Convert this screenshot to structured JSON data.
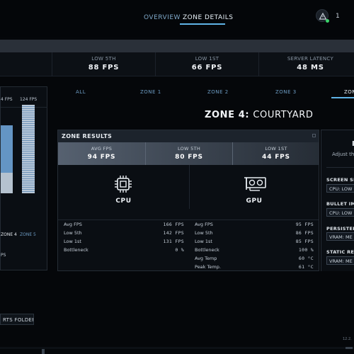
{
  "nav": {
    "tabs": [
      {
        "label": "OVERVIEW"
      },
      {
        "label": "ZONE DETAILS"
      }
    ],
    "notification_count": "1"
  },
  "summary": [
    {
      "label": "LOW 5TH",
      "value": "88 FPS"
    },
    {
      "label": "LOW 1ST",
      "value": "66 FPS"
    },
    {
      "label": "SERVER LATENCY",
      "value": "48 MS"
    }
  ],
  "left_panel": {
    "headers": [
      "4 FPS",
      "124 FPS"
    ],
    "zones": [
      {
        "label": "ZONE 4",
        "active": true
      },
      {
        "label": "ZONE 5",
        "active": false
      }
    ],
    "fps_label": "PS"
  },
  "zone_tabs": [
    "ALL",
    "ZONE 1",
    "ZONE 2",
    "ZONE 3",
    "ZON"
  ],
  "zone_title": {
    "prefix": "ZONE 4:",
    "name": "COURTYARD"
  },
  "results": {
    "title": "ZONE RESULTS",
    "stats": [
      {
        "label": "AVG FPS",
        "value": "94 FPS"
      },
      {
        "label": "LOW 5TH",
        "value": "80 FPS"
      },
      {
        "label": "LOW 1ST",
        "value": "44 FPS"
      }
    ],
    "cpu": {
      "name": "CPU",
      "rows": [
        {
          "k": "Avg FPS",
          "v": "166 FPS"
        },
        {
          "k": "Low 5th",
          "v": "142 FPS"
        },
        {
          "k": "Low 1st",
          "v": "131 FPS"
        },
        {
          "k": "Bottleneck",
          "v": "0 %"
        }
      ]
    },
    "gpu": {
      "name": "GPU",
      "rows": [
        {
          "k": "Avg FPS",
          "v": "95 FPS"
        },
        {
          "k": "Low 5th",
          "v": "86 FPS"
        },
        {
          "k": "Low 1st",
          "v": "85 FPS"
        },
        {
          "k": "Bottleneck",
          "v": "100 %"
        },
        {
          "k": "Avg Temp",
          "v": "60 °C"
        },
        {
          "k": "Peak Temp.",
          "v": "61 °C"
        }
      ]
    }
  },
  "settings": {
    "title": "I",
    "subtitle": "Adjust the",
    "items": [
      {
        "label": "SCREEN SP",
        "value": "CPU: LOW"
      },
      {
        "label": "BULLET IM",
        "value": "CPU: LOW"
      },
      {
        "label": "PERSISTEN",
        "value": "VRAM: ME"
      },
      {
        "label": "STATIC REF",
        "value": "VRAM: ME"
      }
    ]
  },
  "footer": {
    "button": "RTS FOLDER",
    "version": "12.2."
  }
}
